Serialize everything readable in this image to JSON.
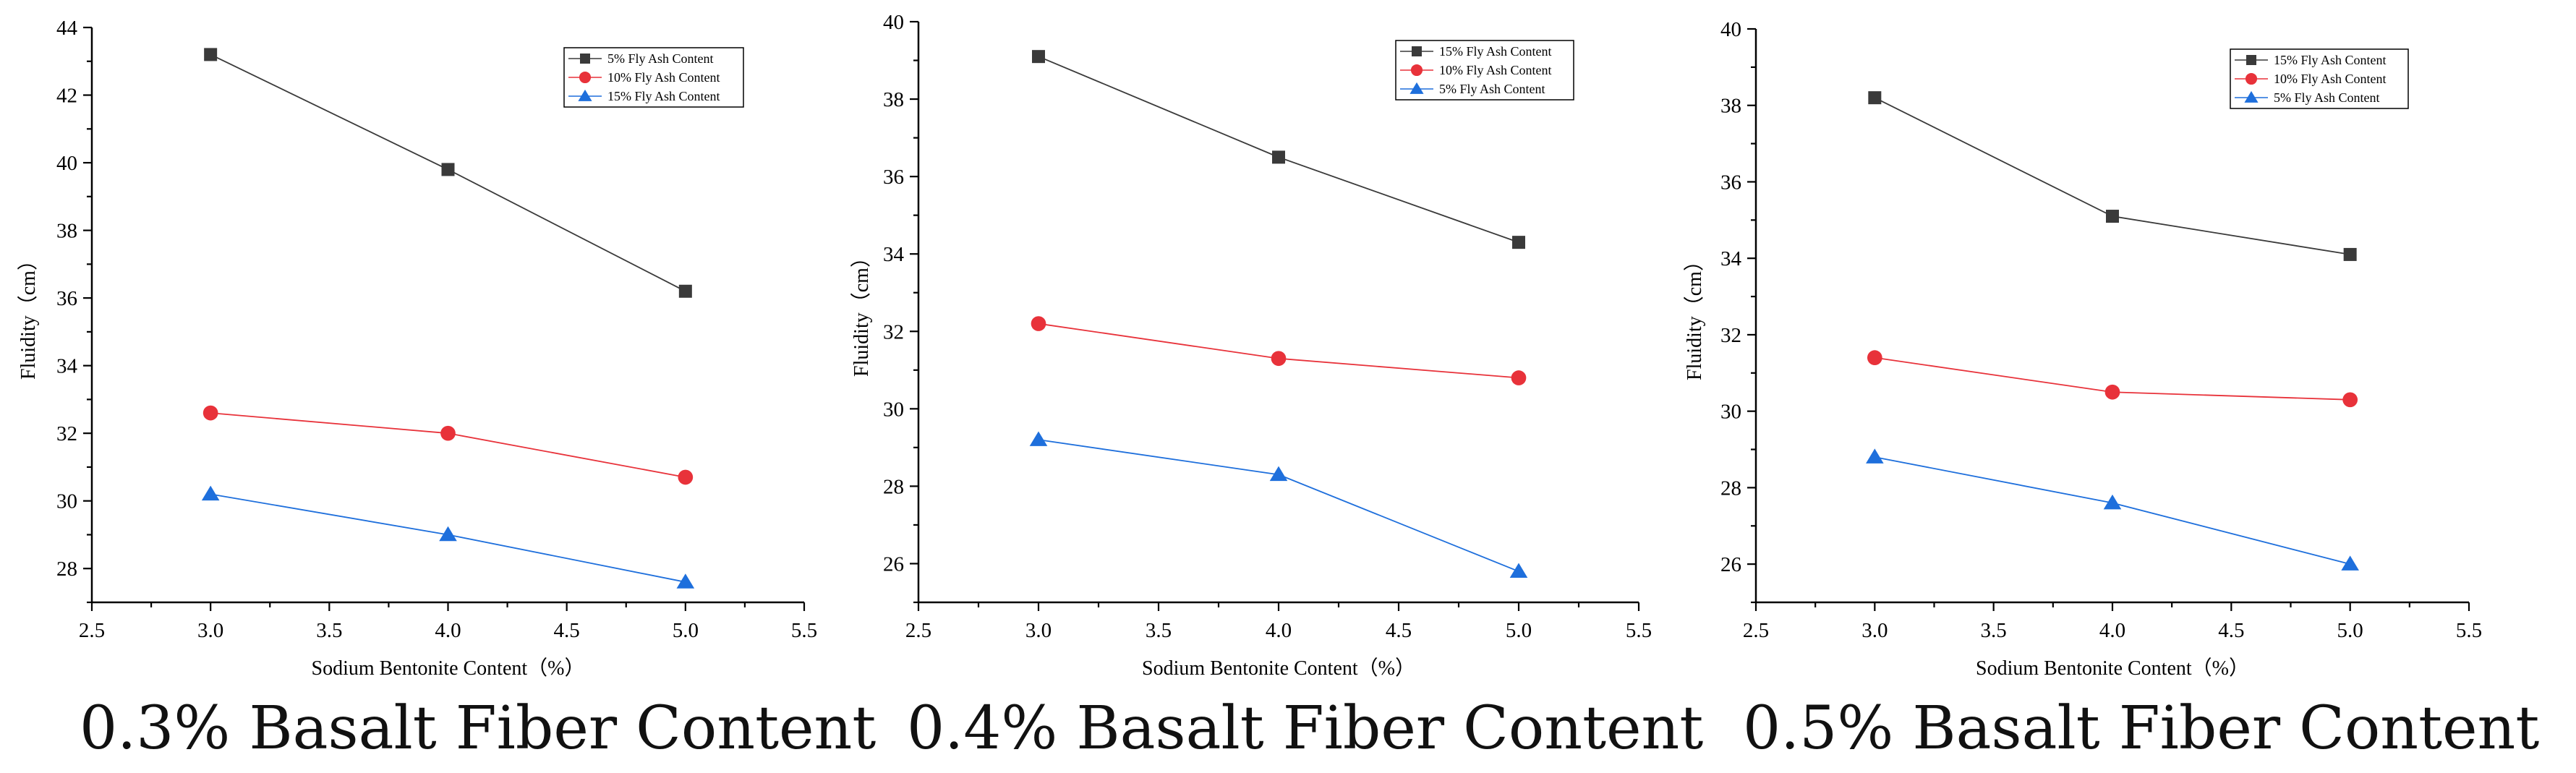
{
  "chart_data": [
    {
      "type": "line",
      "title": "0.3% Basalt Fiber Content",
      "xlabel": "Sodium Bentonite Content（%）",
      "ylabel": "Fluidity（cm）",
      "xlim": [
        2.5,
        5.5
      ],
      "ylim": [
        27,
        44
      ],
      "x_ticks": [
        "2.5",
        "3.0",
        "3.5",
        "4.0",
        "4.5",
        "5.0",
        "5.5"
      ],
      "y_ticks": [
        "28",
        "30",
        "32",
        "34",
        "36",
        "38",
        "40",
        "42",
        "44"
      ],
      "x": [
        3.0,
        4.0,
        5.0
      ],
      "legend_position": "top-right",
      "series": [
        {
          "name": "5%  Fly Ash Content",
          "color": "#3a3a3a",
          "marker": "square",
          "values": [
            43.2,
            39.8,
            36.2
          ]
        },
        {
          "name": "10%  Fly Ash Content",
          "color": "#e8323a",
          "marker": "circle",
          "values": [
            32.6,
            32.0,
            30.7
          ]
        },
        {
          "name": "15%  Fly Ash Content",
          "color": "#1e6fdc",
          "marker": "triangle",
          "values": [
            30.2,
            29.0,
            27.6
          ]
        }
      ]
    },
    {
      "type": "line",
      "title": "0.4% Basalt Fiber Content",
      "xlabel": "Sodium Bentonite Content（%）",
      "ylabel": "Fluidity（cm）",
      "xlim": [
        2.5,
        5.5
      ],
      "ylim": [
        25,
        40
      ],
      "x_ticks": [
        "2.5",
        "3.0",
        "3.5",
        "4.0",
        "4.5",
        "5.0",
        "5.5"
      ],
      "y_ticks": [
        "26",
        "28",
        "30",
        "32",
        "34",
        "36",
        "38",
        "40"
      ],
      "x": [
        3.0,
        4.0,
        5.0
      ],
      "legend_position": "top-right",
      "series": [
        {
          "name": "15%  Fly Ash Content",
          "color": "#3a3a3a",
          "marker": "square",
          "values": [
            39.1,
            36.5,
            34.3
          ]
        },
        {
          "name": "10%  Fly Ash Content",
          "color": "#e8323a",
          "marker": "circle",
          "values": [
            32.2,
            31.3,
            30.8
          ]
        },
        {
          "name": "5%  Fly Ash Content",
          "color": "#1e6fdc",
          "marker": "triangle",
          "values": [
            29.2,
            28.3,
            25.8
          ]
        }
      ]
    },
    {
      "type": "line",
      "title": "0.5% Basalt Fiber Content",
      "xlabel": "Sodium Bentonite Content（%）",
      "ylabel": "Fluidity（cm）",
      "xlim": [
        2.5,
        5.5
      ],
      "ylim": [
        25,
        40
      ],
      "x_ticks": [
        "2.5",
        "3.0",
        "3.5",
        "4.0",
        "4.5",
        "5.0",
        "5.5"
      ],
      "y_ticks": [
        "26",
        "28",
        "30",
        "32",
        "34",
        "36",
        "38",
        "40"
      ],
      "x": [
        3.0,
        4.0,
        5.0
      ],
      "legend_position": "top-right",
      "series": [
        {
          "name": "15%  Fly Ash Content",
          "color": "#3a3a3a",
          "marker": "square",
          "values": [
            38.2,
            35.1,
            34.1
          ]
        },
        {
          "name": "10%  Fly Ash Content",
          "color": "#e8323a",
          "marker": "circle",
          "values": [
            31.4,
            30.5,
            30.3
          ]
        },
        {
          "name": "5%  Fly Ash Content",
          "color": "#1e6fdc",
          "marker": "triangle",
          "values": [
            28.8,
            27.6,
            26.0
          ]
        }
      ]
    }
  ]
}
